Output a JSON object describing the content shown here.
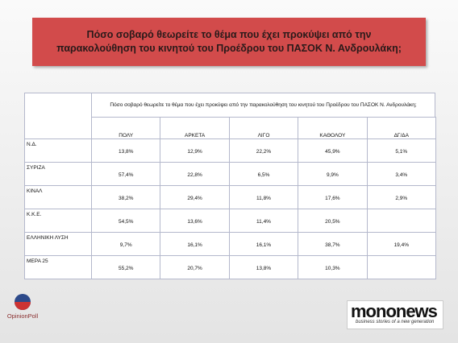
{
  "header": {
    "title": "Πόσο σοβαρό θεωρείτε το θέμα που έχει προκύψει από την παρακολούθηση του κινητού του Προέδρου του ΠΑΣΟΚ Ν. Ανδρουλάκη;"
  },
  "table": {
    "caption": "Πόσο σοβαρό θεωρείτε το θέμα που έχει προκύψει από την παρακολούθηση του κινητού του Προέδρου του ΠΑΣΟΚ Ν. Ανδρουλάκη;",
    "columns": [
      "ΠΟΛΥ",
      "ΑΡΚΕΤΑ",
      "ΛΙΓΟ",
      "ΚΑΘΟΛΟΥ",
      "ΔΓ/ΔΑ"
    ],
    "rows": [
      [
        "Ν.Δ.",
        "13,8%",
        "12,9%",
        "22,2%",
        "45,9%",
        "5,1%"
      ],
      [
        "ΣΥΡΙΖΑ",
        "57,4%",
        "22,8%",
        "6,5%",
        "9,9%",
        "3,4%"
      ],
      [
        "ΚΙΝΑΛ",
        "38,2%",
        "29,4%",
        "11,8%",
        "17,6%",
        "2,9%"
      ],
      [
        "Κ.Κ.Ε.",
        "54,5%",
        "13,6%",
        "11,4%",
        "20,5%",
        null
      ],
      [
        "ΕΛΛΗΝΙΚΗ ΛΥΣΗ",
        "9,7%",
        "16,1%",
        "16,1%",
        "38,7%",
        "19,4%"
      ],
      [
        "ΜΕΡΑ 25",
        "55,2%",
        "20,7%",
        "13,8%",
        "10,3%",
        null
      ]
    ]
  },
  "footer": {
    "pollster": "OpinionPoll",
    "brand": "mononews",
    "tagline": "business stories of a new generation"
  }
}
